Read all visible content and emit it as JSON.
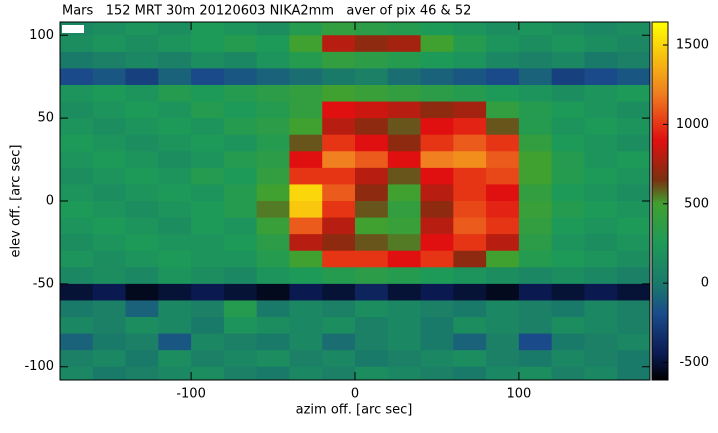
{
  "chart_data": {
    "type": "heatmap",
    "title": "Mars   152 MRT 30m 20120603 NIKA2mm   aver of pix 46 & 52",
    "x_label": "azim off. [arc sec]",
    "y_label": "elev off. [arc sec]",
    "xlim": [
      -180,
      180
    ],
    "ylim": [
      -108,
      108
    ],
    "xticks": [
      -100,
      0,
      100
    ],
    "yticks": [
      -100,
      -50,
      0,
      50,
      100
    ],
    "zlim": [
      -610,
      1645
    ],
    "zticks": [
      -500,
      0,
      500,
      1000,
      1500
    ],
    "colorscale": [
      [
        -610,
        "#000000"
      ],
      [
        -450,
        "#0a1a50"
      ],
      [
        -200,
        "#1a4a8a"
      ],
      [
        0,
        "#1a7a6a"
      ],
      [
        250,
        "#1e9a58"
      ],
      [
        500,
        "#40a030"
      ],
      [
        650,
        "#7a3010"
      ],
      [
        900,
        "#e01010"
      ],
      [
        1200,
        "#f08020"
      ],
      [
        1645,
        "#ffff00"
      ]
    ],
    "x": [
      -170,
      -150,
      -130,
      -110,
      -90,
      -70,
      -50,
      -30,
      -10,
      10,
      30,
      50,
      70,
      90,
      110,
      130,
      150,
      170
    ],
    "y": [
      105,
      95,
      85,
      75,
      65,
      55,
      45,
      35,
      25,
      15,
      5,
      -5,
      -15,
      -25,
      -35,
      -45,
      -55,
      -65,
      -75,
      -85,
      -95,
      -105
    ],
    "z": [
      [
        100,
        150,
        200,
        150,
        250,
        200,
        150,
        300,
        400,
        350,
        300,
        250,
        200,
        150,
        200,
        150,
        100,
        150
      ],
      [
        150,
        200,
        150,
        200,
        250,
        300,
        250,
        500,
        800,
        700,
        750,
        500,
        300,
        200,
        150,
        200,
        150,
        100
      ],
      [
        0,
        50,
        100,
        50,
        150,
        100,
        200,
        300,
        400,
        350,
        300,
        250,
        200,
        100,
        50,
        100,
        0,
        50
      ],
      [
        -200,
        -150,
        -250,
        -100,
        -200,
        -150,
        -100,
        -50,
        0,
        50,
        -50,
        -100,
        -150,
        -200,
        -100,
        -250,
        -200,
        -150
      ],
      [
        200,
        250,
        200,
        300,
        250,
        300,
        350,
        400,
        500,
        450,
        400,
        350,
        300,
        250,
        200,
        150,
        200,
        250
      ],
      [
        150,
        200,
        250,
        200,
        300,
        250,
        300,
        400,
        900,
        850,
        800,
        700,
        750,
        400,
        300,
        250,
        200,
        150
      ],
      [
        200,
        150,
        200,
        250,
        200,
        300,
        350,
        500,
        800,
        700,
        600,
        900,
        950,
        600,
        300,
        200,
        250,
        200
      ],
      [
        250,
        200,
        150,
        200,
        250,
        200,
        300,
        600,
        1000,
        900,
        700,
        1000,
        1100,
        1000,
        400,
        250,
        200,
        150
      ],
      [
        200,
        250,
        200,
        150,
        200,
        300,
        350,
        900,
        1200,
        1100,
        900,
        1200,
        1250,
        1100,
        500,
        300,
        200,
        250
      ],
      [
        150,
        200,
        250,
        200,
        300,
        250,
        400,
        1000,
        1000,
        800,
        600,
        900,
        1000,
        1050,
        500,
        300,
        250,
        200
      ],
      [
        200,
        150,
        200,
        250,
        200,
        300,
        500,
        1500,
        1100,
        700,
        500,
        800,
        1000,
        900,
        400,
        250,
        200,
        150
      ],
      [
        250,
        200,
        150,
        200,
        250,
        300,
        550,
        1450,
        1000,
        600,
        400,
        700,
        1050,
        950,
        450,
        300,
        250,
        200
      ],
      [
        200,
        250,
        200,
        150,
        250,
        200,
        450,
        1100,
        800,
        500,
        450,
        800,
        1100,
        1000,
        400,
        250,
        200,
        250
      ],
      [
        150,
        200,
        250,
        200,
        200,
        250,
        350,
        800,
        700,
        600,
        550,
        900,
        1000,
        800,
        350,
        200,
        150,
        200
      ],
      [
        200,
        150,
        200,
        250,
        200,
        200,
        300,
        500,
        1000,
        1000,
        900,
        1000,
        700,
        500,
        300,
        250,
        200,
        150
      ],
      [
        100,
        150,
        100,
        200,
        150,
        100,
        200,
        250,
        300,
        350,
        300,
        250,
        200,
        150,
        100,
        150,
        100,
        50
      ],
      [
        -500,
        -450,
        -550,
        -500,
        -450,
        -500,
        -550,
        -450,
        -500,
        -400,
        -500,
        -450,
        -500,
        -550,
        -450,
        -500,
        -450,
        -500
      ],
      [
        0,
        50,
        -100,
        100,
        50,
        300,
        0,
        100,
        50,
        150,
        100,
        50,
        0,
        100,
        50,
        0,
        100,
        50
      ],
      [
        100,
        50,
        150,
        100,
        0,
        200,
        150,
        100,
        150,
        50,
        100,
        0,
        150,
        100,
        50,
        150,
        100,
        50
      ],
      [
        -100,
        0,
        50,
        -150,
        100,
        50,
        0,
        100,
        -50,
        50,
        100,
        0,
        -100,
        50,
        -200,
        0,
        50,
        100
      ],
      [
        50,
        100,
        0,
        150,
        50,
        100,
        150,
        50,
        100,
        0,
        50,
        100,
        150,
        50,
        0,
        100,
        50,
        0
      ],
      [
        100,
        0,
        50,
        100,
        150,
        50,
        0,
        100,
        50,
        150,
        100,
        50,
        0,
        100,
        150,
        50,
        100,
        0
      ]
    ]
  }
}
